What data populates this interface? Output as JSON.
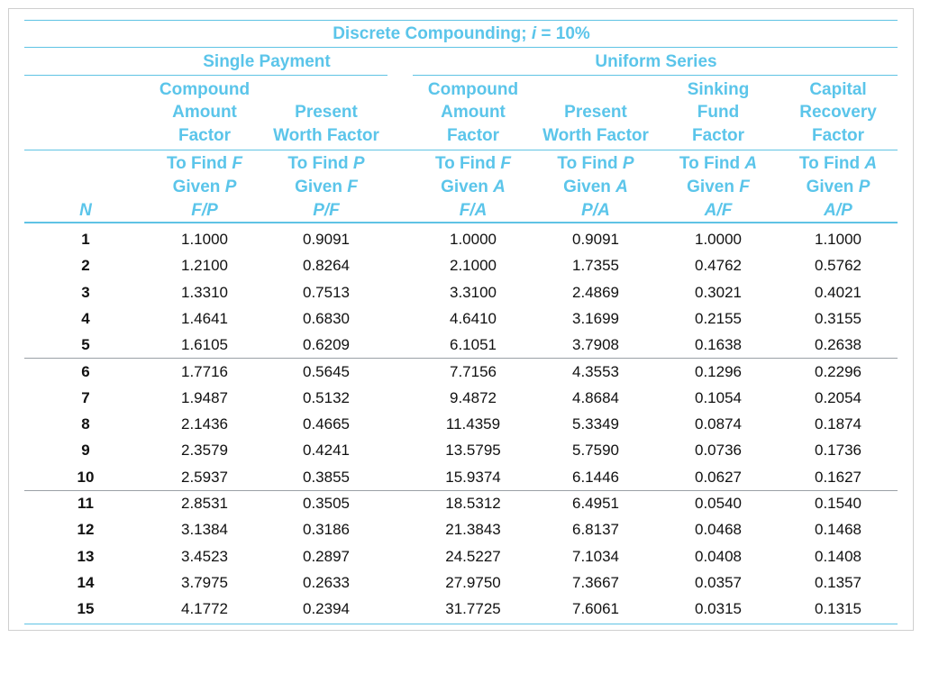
{
  "table": {
    "title_prefix": "Discrete Compounding; ",
    "title_var": "i",
    "title_suffix": " = 10%",
    "groups": {
      "single_payment": "Single Payment",
      "uniform_series": "Uniform Series"
    },
    "n_header": "N",
    "columns": [
      {
        "id": "fp",
        "name": [
          "",
          "Compound",
          "Amount",
          "Factor"
        ],
        "find": "To Find ",
        "find_var": "F",
        "given": "Given ",
        "given_var": "P",
        "notation": "F/P"
      },
      {
        "id": "pf",
        "name": [
          "",
          "",
          "Present",
          "Worth Factor"
        ],
        "find": "To Find ",
        "find_var": "P",
        "given": "Given ",
        "given_var": "F",
        "notation": "P/F"
      },
      {
        "id": "fa",
        "name": [
          "",
          "Compound",
          "Amount",
          "Factor"
        ],
        "find": "To Find ",
        "find_var": "F",
        "given": "Given ",
        "given_var": "A",
        "notation": "F/A"
      },
      {
        "id": "pa",
        "name": [
          "",
          "",
          "Present",
          "Worth Factor"
        ],
        "find": "To Find ",
        "find_var": "P",
        "given": "Given ",
        "given_var": "A",
        "notation": "P/A"
      },
      {
        "id": "af",
        "name": [
          "",
          "Sinking",
          "Fund",
          "Factor"
        ],
        "find": "To Find ",
        "find_var": "A",
        "given": "Given ",
        "given_var": "F",
        "notation": "A/F"
      },
      {
        "id": "ap",
        "name": [
          "",
          "Capital",
          "Recovery",
          "Factor"
        ],
        "find": "To Find ",
        "find_var": "A",
        "given": "Given ",
        "given_var": "P",
        "notation": "A/P"
      }
    ],
    "rows": [
      [
        "1",
        "1.1000",
        "0.9091",
        "1.0000",
        "0.9091",
        "1.0000",
        "1.1000"
      ],
      [
        "2",
        "1.2100",
        "0.8264",
        "2.1000",
        "1.7355",
        "0.4762",
        "0.5762"
      ],
      [
        "3",
        "1.3310",
        "0.7513",
        "3.3100",
        "2.4869",
        "0.3021",
        "0.4021"
      ],
      [
        "4",
        "1.4641",
        "0.6830",
        "4.6410",
        "3.1699",
        "0.2155",
        "0.3155"
      ],
      [
        "5",
        "1.6105",
        "0.6209",
        "6.1051",
        "3.7908",
        "0.1638",
        "0.2638"
      ],
      [
        "6",
        "1.7716",
        "0.5645",
        "7.7156",
        "4.3553",
        "0.1296",
        "0.2296"
      ],
      [
        "7",
        "1.9487",
        "0.5132",
        "9.4872",
        "4.8684",
        "0.1054",
        "0.2054"
      ],
      [
        "8",
        "2.1436",
        "0.4665",
        "11.4359",
        "5.3349",
        "0.0874",
        "0.1874"
      ],
      [
        "9",
        "2.3579",
        "0.4241",
        "13.5795",
        "5.7590",
        "0.0736",
        "0.1736"
      ],
      [
        "10",
        "2.5937",
        "0.3855",
        "15.9374",
        "6.1446",
        "0.0627",
        "0.1627"
      ],
      [
        "11",
        "2.8531",
        "0.3505",
        "18.5312",
        "6.4951",
        "0.0540",
        "0.1540"
      ],
      [
        "12",
        "3.1384",
        "0.3186",
        "21.3843",
        "6.8137",
        "0.0468",
        "0.1468"
      ],
      [
        "13",
        "3.4523",
        "0.2897",
        "24.5227",
        "7.1034",
        "0.0408",
        "0.1408"
      ],
      [
        "14",
        "3.7975",
        "0.2633",
        "27.9750",
        "7.3667",
        "0.0357",
        "0.1357"
      ],
      [
        "15",
        "4.1772",
        "0.2394",
        "31.7725",
        "7.6061",
        "0.0315",
        "0.1315"
      ]
    ]
  }
}
